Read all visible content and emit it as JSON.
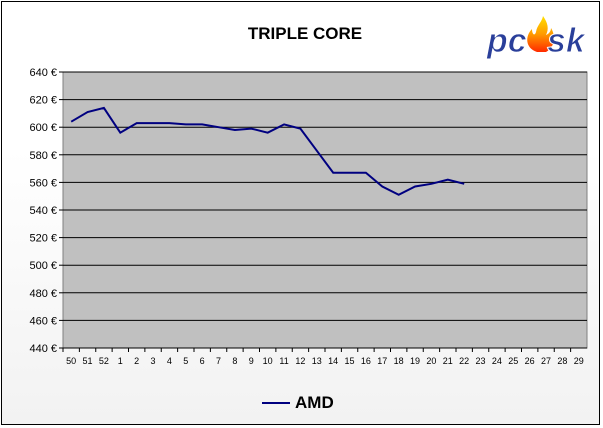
{
  "logo_text": "pcask",
  "chart_data": {
    "type": "line",
    "title": "TRIPLE CORE",
    "xlabel": "",
    "ylabel": "",
    "categories": [
      "50",
      "51",
      "52",
      "1",
      "2",
      "3",
      "4",
      "5",
      "6",
      "7",
      "8",
      "9",
      "10",
      "11",
      "12",
      "13",
      "14",
      "15",
      "16",
      "17",
      "18",
      "19",
      "20",
      "21",
      "22",
      "23",
      "24",
      "25",
      "26",
      "27",
      "28",
      "29"
    ],
    "ylim": [
      440,
      640
    ],
    "yticks": [
      440,
      460,
      480,
      500,
      520,
      540,
      560,
      580,
      600,
      620,
      640
    ],
    "ytick_labels": [
      "440 €",
      "460 €",
      "480 €",
      "500 €",
      "520 €",
      "540 €",
      "560 €",
      "580 €",
      "600 €",
      "620 €",
      "640 €"
    ],
    "grid": true,
    "legend_position": "bottom",
    "series": [
      {
        "name": "AMD",
        "color": "#000080",
        "values": [
          604,
          611,
          614,
          596,
          603,
          603,
          603,
          602,
          602,
          600,
          598,
          599,
          596,
          602,
          599,
          583,
          567,
          567,
          567,
          557,
          551,
          557,
          559,
          562,
          559,
          null,
          null,
          null,
          null,
          null,
          null,
          null
        ]
      }
    ],
    "colors": {
      "plot_background": "#c0c0c0",
      "grid": "#000000"
    }
  }
}
